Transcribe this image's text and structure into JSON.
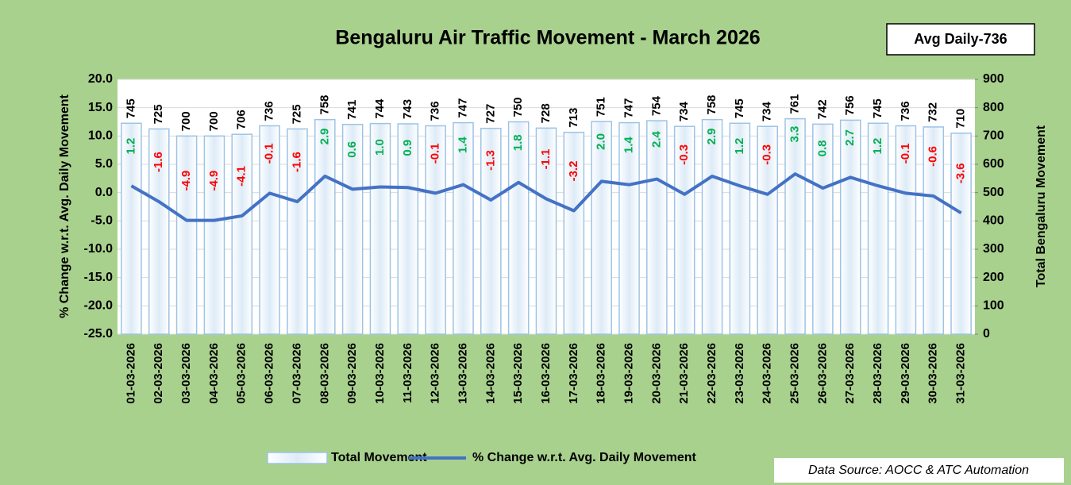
{
  "chart_data": {
    "type": "bar_line",
    "title": "Bengaluru Air Traffic Movement - March 2026",
    "annotation": "Avg Daily-736",
    "source": "Data Source: AOCC & ATC Automation",
    "y_label": "% Change w.r.t. Avg. Daily Movement",
    "y2_label": "Total Bengaluru Movement",
    "categories": [
      "01-03-2026",
      "02-03-2026",
      "03-03-2026",
      "04-03-2026",
      "05-03-2026",
      "06-03-2026",
      "07-03-2026",
      "08-03-2026",
      "09-03-2026",
      "10-03-2026",
      "11-03-2026",
      "12-03-2026",
      "13-03-2026",
      "14-03-2026",
      "15-03-2026",
      "16-03-2026",
      "17-03-2026",
      "18-03-2026",
      "19-03-2026",
      "20-03-2026",
      "21-03-2026",
      "22-03-2026",
      "23-03-2026",
      "24-03-2026",
      "25-03-2026",
      "26-03-2026",
      "27-03-2026",
      "28-03-2026",
      "29-03-2026",
      "30-03-2026",
      "31-03-2026"
    ],
    "series": [
      {
        "name": "Total Movement",
        "type": "bar",
        "axis": "y2",
        "color": "#9dc3e6",
        "values": [
          745,
          725,
          700,
          700,
          706,
          736,
          725,
          758,
          741,
          744,
          743,
          736,
          747,
          727,
          750,
          728,
          713,
          751,
          747,
          754,
          734,
          758,
          745,
          734,
          761,
          742,
          756,
          745,
          736,
          732,
          710
        ]
      },
      {
        "name": "% Change w.r.t. Avg. Daily Movement",
        "type": "line",
        "axis": "y",
        "color": "#4472c4",
        "values": [
          1.2,
          -1.6,
          -4.9,
          -4.9,
          -4.1,
          -0.1,
          -1.6,
          2.9,
          0.6,
          1.0,
          0.9,
          -0.1,
          1.4,
          -1.3,
          1.8,
          -1.1,
          -3.2,
          2.0,
          1.4,
          2.4,
          -0.3,
          2.9,
          1.2,
          -0.3,
          3.3,
          0.8,
          2.7,
          1.2,
          -0.1,
          -0.6,
          -3.6
        ],
        "value_labels": [
          "1.2",
          "-1.6",
          "-4.9",
          "-4.9",
          "-4.1",
          "-0.1",
          "-1.6",
          "2.9",
          "0.6",
          "1.0",
          "0.9",
          "-0.1",
          "1.4",
          "-1.3",
          "1.8",
          "-1.1",
          "-3.2",
          "2.0",
          "1.4",
          "2.4",
          "-0.3",
          "2.9",
          "1.2",
          "-0.3",
          "3.3",
          "0.8",
          "2.7",
          "1.2",
          "-0.1",
          "-0.6",
          "-3.6"
        ]
      }
    ],
    "ylim": [
      -25,
      20
    ],
    "yticks": [
      {
        "value": -25,
        "label": "-25.0"
      },
      {
        "value": -20,
        "label": "-20.0"
      },
      {
        "value": -15,
        "label": "-15.0"
      },
      {
        "value": -10,
        "label": "-10.0"
      },
      {
        "value": -5,
        "label": "-5.0"
      },
      {
        "value": 0,
        "label": "0.0"
      },
      {
        "value": 5,
        "label": "5.0"
      },
      {
        "value": 10,
        "label": "10.0"
      },
      {
        "value": 15,
        "label": "15.0"
      },
      {
        "value": 20,
        "label": "20.0"
      }
    ],
    "y2lim": [
      0,
      900
    ],
    "y2ticks": [
      0,
      100,
      200,
      300,
      400,
      500,
      600,
      700,
      800,
      900
    ],
    "grid": true,
    "positive_color": "#00b050",
    "negative_color": "#ff0000"
  }
}
